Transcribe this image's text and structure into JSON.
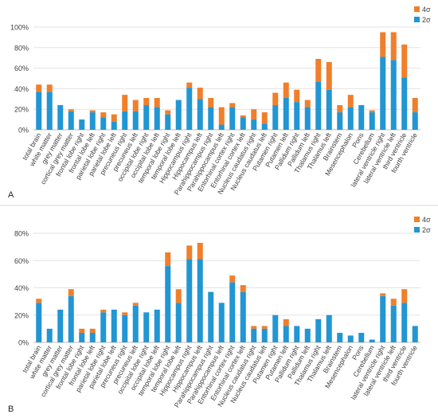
{
  "chart_data": [
    {
      "type": "bar",
      "stacked": true,
      "panel_label": "A",
      "categories": [
        "total brain",
        "white matter",
        "grey matter",
        "cortical grey matter",
        "frontal lobe right",
        "frontal lobe left",
        "parietal lobe right",
        "parietal lobe left",
        "precuneus right",
        "precuneus left",
        "occipital lobe right",
        "occipital lobe left",
        "temporal lobe right",
        "temporal lobe left",
        "Hippocampus right",
        "Hippocampus left",
        "Parahippocampus right",
        "Parahippocampus left",
        "Entorhinal cortex right",
        "Entorhinal cortex left",
        "Nucleus caudatus right",
        "Nucleus caudatus left",
        "Putamen right",
        "Putamen left",
        "Pallidum right",
        "Pallidum left",
        "Thalamus right",
        "Thalamus left",
        "Brainstem",
        "Mesencephalon",
        "Pons",
        "Cerebellum",
        "lateral ventricle right",
        "lateral ventricle left",
        "third ventricle",
        "fourth ventricle"
      ],
      "series": [
        {
          "name": "2σ",
          "color": "#2196d3",
          "values": [
            37,
            37,
            24,
            18,
            10,
            17,
            12,
            8,
            18,
            18,
            24,
            22,
            15,
            29,
            41,
            30,
            22,
            5,
            22,
            12,
            10,
            6,
            24,
            31,
            27,
            22,
            47,
            39,
            17,
            22,
            24,
            17,
            71,
            68,
            51,
            17
          ]
        },
        {
          "name": "4σ",
          "color": "#f07f2b",
          "values": [
            7,
            7,
            0,
            2,
            0,
            2,
            5,
            7,
            16,
            11,
            7,
            9,
            4,
            0,
            5,
            11,
            9,
            17,
            4,
            2,
            10,
            11,
            12,
            15,
            12,
            7,
            22,
            27,
            7,
            12,
            0,
            2,
            24,
            27,
            32,
            14
          ]
        }
      ],
      "ylim": [
        0,
        100
      ],
      "yticks": [
        "0%",
        "20%",
        "40%",
        "60%",
        "80%",
        "100%"
      ],
      "legend_position": "top-right",
      "grid": true
    },
    {
      "type": "bar",
      "stacked": true,
      "panel_label": "B",
      "categories": [
        "total brain",
        "white matter",
        "grey matter",
        "cortical grey matter",
        "frontal lobe right",
        "frontal lobe left",
        "parietal lobe right",
        "parietal lobe left",
        "precuneus right",
        "precuneus left",
        "occipital lobe right",
        "occipital lobe left",
        "temporal lobe right",
        "temporal lobe left",
        "Hippocampus right",
        "Hippocampus left",
        "Parahippocampus right",
        "Parahippocampus left",
        "Entorhinal cortex right",
        "Entorhinal cortex left",
        "Nucleus caudatus right",
        "Nucleus caudatus left",
        "Putamen right",
        "Putamen left",
        "Pallidum right",
        "Pallidum left",
        "Thalamus right",
        "Thalamus left",
        "Brainstem",
        "Mesencephalon",
        "Pons",
        "Cerebellum",
        "lateral ventricle right",
        "lateral ventricle left",
        "third ventricle",
        "fourth ventricle"
      ],
      "series": [
        {
          "name": "2σ",
          "color": "#2196d3",
          "values": [
            29,
            10,
            24,
            34,
            7,
            7,
            22,
            24,
            20,
            27,
            22,
            24,
            56,
            29,
            61,
            61,
            37,
            29,
            44,
            37,
            10,
            10,
            20,
            12,
            12,
            10,
            17,
            20,
            7,
            5,
            7,
            2,
            34,
            27,
            29,
            12
          ]
        },
        {
          "name": "4σ",
          "color": "#f07f2b",
          "values": [
            3,
            0,
            0,
            5,
            3,
            3,
            2,
            0,
            2,
            2,
            0,
            0,
            10,
            10,
            10,
            12,
            0,
            0,
            5,
            5,
            2,
            2,
            0,
            5,
            0,
            0,
            0,
            0,
            0,
            0,
            0,
            0,
            2,
            5,
            10,
            0
          ]
        }
      ],
      "ylim": [
        0,
        80
      ],
      "yticks": [
        "0%",
        "20%",
        "40%",
        "60%",
        "80%"
      ],
      "legend_position": "top-right",
      "grid": true
    }
  ]
}
